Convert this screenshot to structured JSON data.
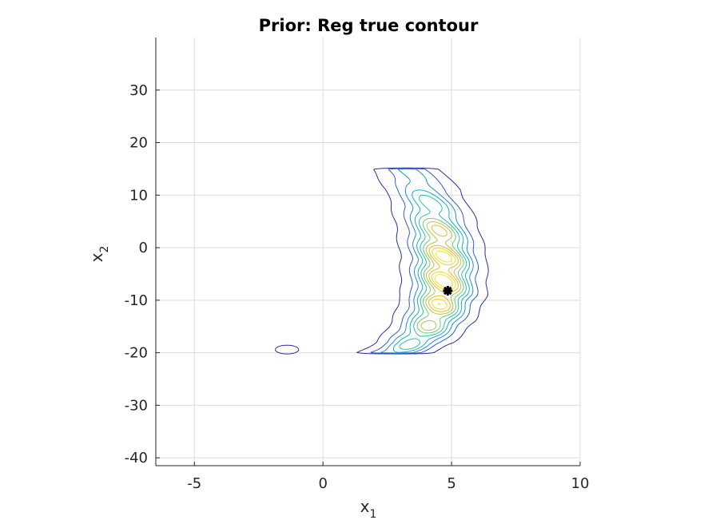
{
  "chart_data": {
    "type": "contour",
    "title": "Prior: Reg true contour",
    "xlabel": "x",
    "xlabel_subscript": "1",
    "ylabel": "x",
    "ylabel_subscript": "2",
    "xlim": [
      -6.5,
      10
    ],
    "ylim": [
      -41.5,
      40
    ],
    "xticks": [
      -5,
      0,
      5,
      10
    ],
    "yticks": [
      30,
      20,
      10,
      0,
      -10,
      -20,
      -30,
      -40
    ],
    "grid": true,
    "colormap": [
      "#2d2a9e",
      "#2a5bd7",
      "#1a8fe0",
      "#10b0c8",
      "#2cc0a6",
      "#6ecb72",
      "#b7c63e",
      "#e6b92e",
      "#f6d82a",
      "#f2e91e"
    ],
    "density": {
      "centerline": [
        [
          3.2,
          15
        ],
        [
          3.9,
          11
        ],
        [
          4.4,
          5
        ],
        [
          4.7,
          -2
        ],
        [
          4.7,
          -9
        ],
        [
          4.3,
          -14
        ],
        [
          3.6,
          -18
        ],
        [
          2.8,
          -20
        ]
      ],
      "peak_width": 1.6,
      "levels": 10,
      "secondary_blob": {
        "x": -1.4,
        "y": -19.4
      }
    },
    "marker": {
      "x": 4.85,
      "y": -8.2,
      "color": "#000000",
      "shape": "star"
    }
  }
}
